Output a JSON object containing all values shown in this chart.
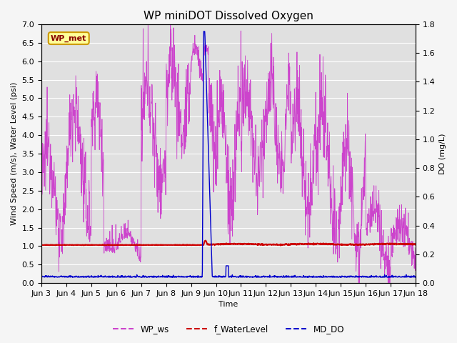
{
  "title": "WP miniDOT Dissolved Oxygen",
  "ylabel_left": "Wind Speed (m/s), Water Level (psi)",
  "ylabel_right": "DO (mg/L)",
  "xlabel": "Time",
  "ylim_left": [
    0.0,
    7.0
  ],
  "ylim_right": [
    0.0,
    1.8
  ],
  "xtick_labels": [
    "Jun 3",
    "Jun 4",
    "Jun 5",
    "Jun 6",
    "Jun 7",
    "Jun 8",
    "Jun 9",
    "Jun 10",
    "Jun 11",
    "Jun 12",
    "Jun 13",
    "Jun 14",
    "Jun 15",
    "Jun 16",
    "Jun 17",
    "Jun 18"
  ],
  "legend_labels": [
    "WP_ws",
    "f_WaterLevel",
    "MD_DO"
  ],
  "legend_colors": [
    "#cc44cc",
    "#cc0000",
    "#0000cc"
  ],
  "wp_met_text": "WP_met",
  "wp_met_facecolor": "#ffff99",
  "wp_met_edgecolor": "#cc9900",
  "wp_met_textcolor": "#880000",
  "bg_color": "#e0e0e0",
  "fig_facecolor": "#f5f5f5",
  "line_ws_color": "#cc44cc",
  "line_wl_color": "#cc0000",
  "line_do_color": "#0000cc",
  "title_fontsize": 11,
  "axis_label_fontsize": 8,
  "tick_fontsize": 8
}
